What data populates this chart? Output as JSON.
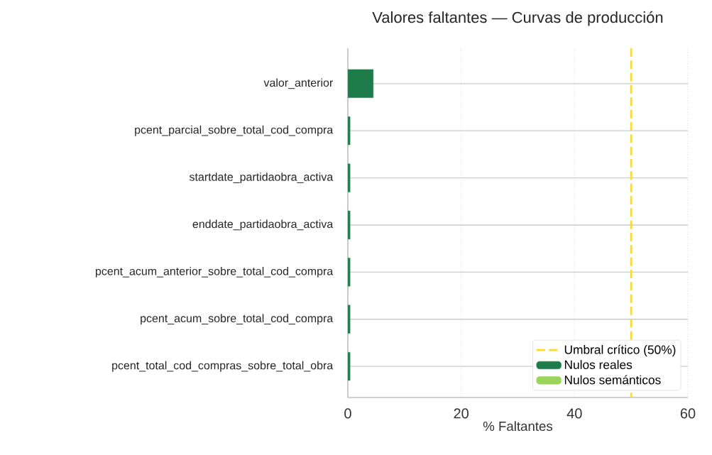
{
  "chart_data": {
    "type": "bar",
    "orientation": "horizontal",
    "stacked": true,
    "title": "Valores faltantes — Curvas de producción",
    "xlabel": "% Faltantes",
    "categories": [
      "valor_anterior",
      "pcent_parcial_sobre_total_cod_compra",
      "startdate_partidaobra_activa",
      "enddate_partidaobra_activa",
      "pcent_acum_anterior_sobre_total_cod_compra",
      "pcent_acum_sobre_total_cod_compra",
      "pcent_total_cod_compras_sobre_total_obra"
    ],
    "series": [
      {
        "name": "Nulos reales",
        "color": "#1e7b4a",
        "values": [
          4.5,
          0.4,
          0.4,
          0.4,
          0.4,
          0.4,
          0.4
        ]
      },
      {
        "name": "Nulos semánticos",
        "color": "#9ad45a",
        "values": [
          0,
          0,
          0,
          0,
          0,
          0,
          0
        ]
      }
    ],
    "xlim": [
      0,
      60
    ],
    "xticks": [
      0,
      20,
      40,
      60
    ],
    "ref_lines": [
      {
        "axis": "x",
        "value": 50,
        "label": "Umbral crítico (50%)",
        "color": "#fbd926",
        "line_style": "dashed"
      }
    ],
    "grid": true,
    "legend": "bottom right"
  }
}
